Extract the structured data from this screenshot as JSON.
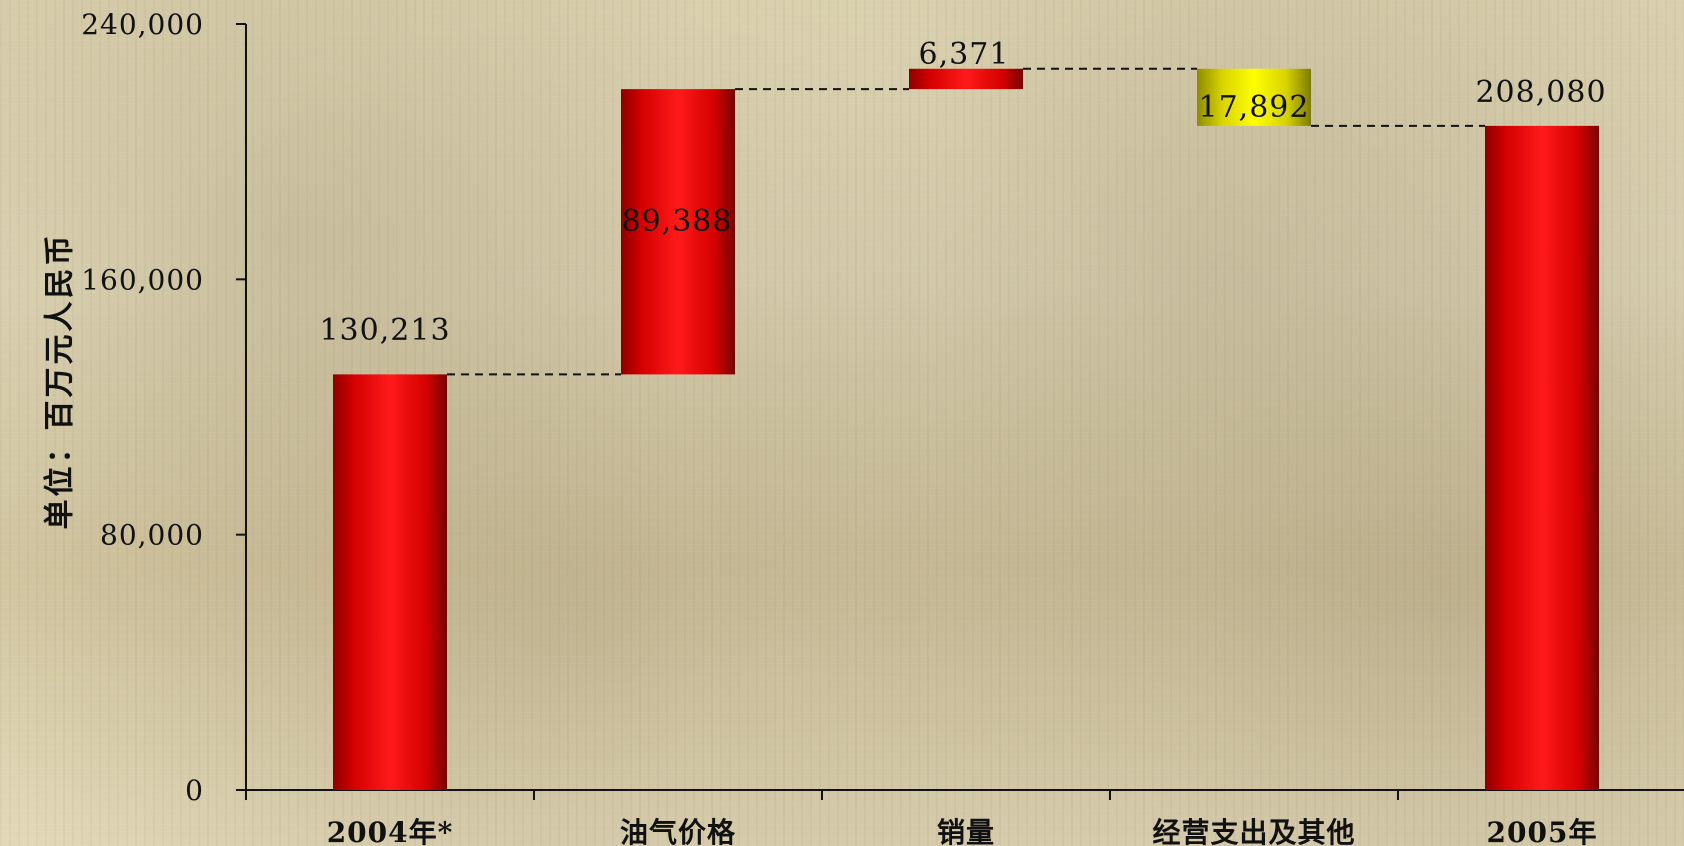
{
  "chart_data": {
    "type": "bar",
    "subtype": "waterfall",
    "title": "",
    "xlabel": "",
    "ylabel": "单位：百万元人民币",
    "ylim": [
      0,
      240000
    ],
    "yticks": [
      0,
      80000,
      160000,
      240000
    ],
    "ytick_labels": [
      "0",
      "80,000",
      "160,000",
      "240,000"
    ],
    "grid": false,
    "legend": "",
    "categories": [
      "2004年*",
      "油气价格",
      "销量",
      "经营支出及其他",
      "2005年"
    ],
    "bars": [
      {
        "category": "2004年*",
        "kind": "total",
        "start": 0,
        "end": 130213,
        "value": 130213,
        "label": "130,213",
        "color": "#ff1a1a"
      },
      {
        "category": "油气价格",
        "kind": "increase",
        "start": 130213,
        "end": 219601,
        "value": 89388,
        "label": "89,388",
        "color": "#ff1a1a"
      },
      {
        "category": "销量",
        "kind": "increase",
        "start": 219601,
        "end": 225972,
        "value": 6371,
        "label": "6,371",
        "color": "#ff1a1a"
      },
      {
        "category": "经营支出及其他",
        "kind": "decrease",
        "start": 225972,
        "end": 208080,
        "value": -17892,
        "label": "17,892",
        "color": "#ffff00"
      },
      {
        "category": "2005年",
        "kind": "total",
        "start": 0,
        "end": 208080,
        "value": 208080,
        "label": "208,080",
        "color": "#ff1a1a"
      }
    ]
  }
}
